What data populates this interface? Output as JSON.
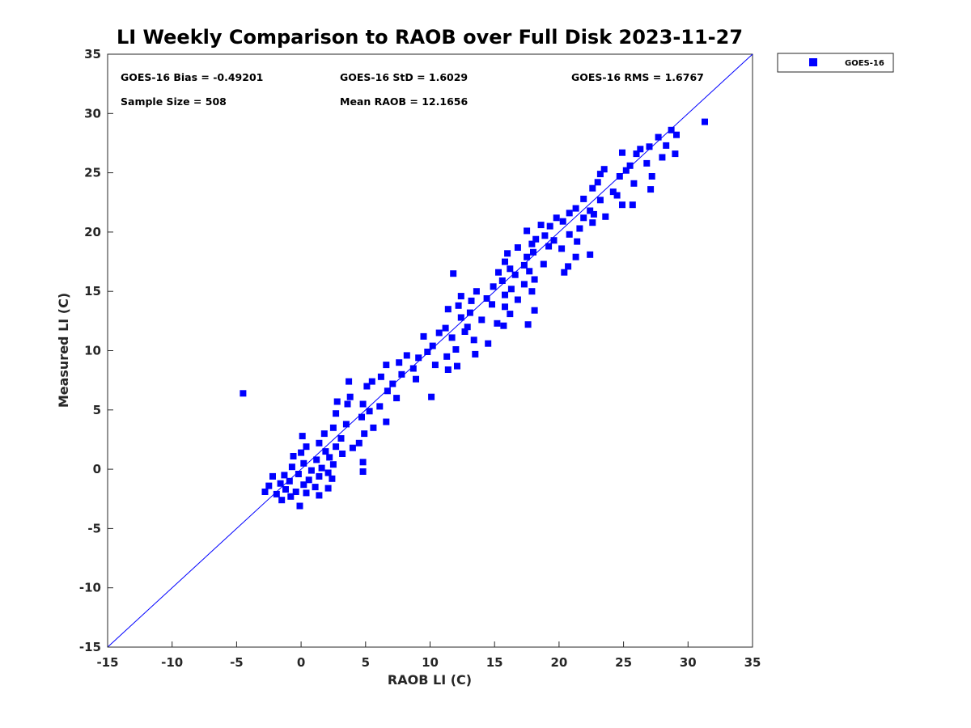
{
  "chart_data": {
    "type": "scatter",
    "title": "LI Weekly Comparison to RAOB over Full Disk 2023-11-27",
    "xlabel": "RAOB LI (C)",
    "ylabel": "Measured LI (C)",
    "xlim": [
      -15,
      35
    ],
    "ylim": [
      -15,
      35
    ],
    "xticks": [
      -15,
      -10,
      -5,
      0,
      5,
      10,
      15,
      20,
      25,
      30,
      35
    ],
    "yticks": [
      -15,
      -10,
      -5,
      0,
      5,
      10,
      15,
      20,
      25,
      30,
      35
    ],
    "grid": false,
    "reference_line": {
      "label": "1:1 line",
      "from": [
        -15,
        -15
      ],
      "to": [
        35,
        35
      ]
    },
    "legend": {
      "position": "outside-top-right",
      "entries": [
        "GOES-16"
      ]
    },
    "stats": {
      "bias": "GOES-16 Bias = -0.49201",
      "std": "GOES-16 StD = 1.6029",
      "rms": "GOES-16 RMS = 1.6767",
      "sample_size": "Sample Size = 508",
      "mean_raob": "Mean RAOB = 12.1656"
    },
    "series": [
      {
        "name": "GOES-16",
        "color": "#0000ff",
        "marker": "square",
        "points": [
          [
            -4.5,
            6.4
          ],
          [
            31.3,
            29.3
          ],
          [
            28.7,
            28.6
          ],
          [
            29.1,
            28.2
          ],
          [
            27.7,
            28.0
          ],
          [
            27.0,
            27.2
          ],
          [
            28.3,
            27.3
          ],
          [
            26.3,
            27.0
          ],
          [
            26.0,
            26.6
          ],
          [
            24.9,
            26.7
          ],
          [
            29.0,
            26.6
          ],
          [
            28.0,
            26.3
          ],
          [
            25.5,
            25.6
          ],
          [
            26.8,
            25.8
          ],
          [
            25.2,
            25.2
          ],
          [
            23.5,
            25.3
          ],
          [
            23.2,
            24.9
          ],
          [
            24.7,
            24.7
          ],
          [
            27.2,
            24.7
          ],
          [
            23.0,
            24.2
          ],
          [
            25.8,
            24.1
          ],
          [
            22.6,
            23.7
          ],
          [
            24.2,
            23.4
          ],
          [
            27.1,
            23.6
          ],
          [
            24.5,
            23.1
          ],
          [
            23.2,
            22.7
          ],
          [
            21.9,
            22.8
          ],
          [
            24.9,
            22.3
          ],
          [
            25.7,
            22.3
          ],
          [
            21.3,
            22.0
          ],
          [
            22.4,
            21.8
          ],
          [
            20.8,
            21.6
          ],
          [
            19.8,
            21.2
          ],
          [
            21.9,
            21.2
          ],
          [
            22.7,
            21.5
          ],
          [
            23.6,
            21.3
          ],
          [
            20.3,
            20.9
          ],
          [
            18.6,
            20.6
          ],
          [
            19.3,
            20.5
          ],
          [
            21.6,
            20.3
          ],
          [
            22.6,
            20.8
          ],
          [
            17.5,
            20.1
          ],
          [
            18.9,
            19.7
          ],
          [
            19.6,
            19.3
          ],
          [
            18.2,
            19.4
          ],
          [
            20.8,
            19.8
          ],
          [
            21.4,
            19.2
          ],
          [
            17.9,
            19.0
          ],
          [
            19.2,
            18.8
          ],
          [
            16.8,
            18.7
          ],
          [
            20.2,
            18.6
          ],
          [
            22.4,
            18.1
          ],
          [
            18.0,
            18.3
          ],
          [
            16.0,
            18.2
          ],
          [
            17.5,
            17.9
          ],
          [
            21.3,
            17.9
          ],
          [
            15.8,
            17.5
          ],
          [
            17.3,
            17.2
          ],
          [
            18.8,
            17.3
          ],
          [
            20.7,
            17.1
          ],
          [
            16.2,
            16.9
          ],
          [
            17.7,
            16.7
          ],
          [
            20.4,
            16.6
          ],
          [
            11.8,
            16.5
          ],
          [
            15.3,
            16.6
          ],
          [
            16.6,
            16.4
          ],
          [
            18.1,
            16.0
          ],
          [
            15.6,
            15.9
          ],
          [
            17.3,
            15.6
          ],
          [
            14.9,
            15.4
          ],
          [
            16.3,
            15.2
          ],
          [
            17.9,
            15.0
          ],
          [
            13.6,
            15.0
          ],
          [
            15.8,
            14.7
          ],
          [
            14.4,
            14.4
          ],
          [
            12.4,
            14.6
          ],
          [
            13.2,
            14.2
          ],
          [
            16.8,
            14.3
          ],
          [
            14.8,
            13.9
          ],
          [
            12.2,
            13.8
          ],
          [
            15.8,
            13.7
          ],
          [
            11.4,
            13.5
          ],
          [
            13.1,
            13.2
          ],
          [
            16.2,
            13.1
          ],
          [
            18.1,
            13.4
          ],
          [
            12.4,
            12.8
          ],
          [
            14.0,
            12.6
          ],
          [
            15.2,
            12.3
          ],
          [
            12.9,
            12.0
          ],
          [
            11.2,
            11.9
          ],
          [
            10.7,
            11.5
          ],
          [
            12.7,
            11.6
          ],
          [
            15.7,
            12.1
          ],
          [
            17.6,
            12.2
          ],
          [
            9.5,
            11.2
          ],
          [
            11.7,
            11.1
          ],
          [
            13.4,
            10.9
          ],
          [
            14.5,
            10.6
          ],
          [
            10.2,
            10.4
          ],
          [
            12.0,
            10.1
          ],
          [
            9.8,
            9.9
          ],
          [
            13.5,
            9.7
          ],
          [
            11.3,
            9.5
          ],
          [
            8.2,
            9.6
          ],
          [
            9.1,
            9.4
          ],
          [
            7.6,
            9.0
          ],
          [
            10.4,
            8.8
          ],
          [
            12.1,
            8.7
          ],
          [
            6.6,
            8.8
          ],
          [
            8.7,
            8.5
          ],
          [
            11.4,
            8.4
          ],
          [
            7.8,
            8.0
          ],
          [
            6.2,
            7.8
          ],
          [
            8.9,
            7.6
          ],
          [
            5.5,
            7.4
          ],
          [
            7.1,
            7.2
          ],
          [
            5.1,
            7.0
          ],
          [
            6.7,
            6.6
          ],
          [
            3.7,
            7.4
          ],
          [
            10.1,
            6.1
          ],
          [
            3.8,
            6.1
          ],
          [
            7.4,
            6.0
          ],
          [
            2.8,
            5.7
          ],
          [
            4.8,
            5.5
          ],
          [
            6.1,
            5.3
          ],
          [
            3.6,
            5.5
          ],
          [
            5.3,
            4.9
          ],
          [
            2.7,
            4.7
          ],
          [
            4.7,
            4.4
          ],
          [
            6.6,
            4.0
          ],
          [
            3.5,
            3.8
          ],
          [
            5.6,
            3.5
          ],
          [
            2.5,
            3.5
          ],
          [
            4.9,
            3.0
          ],
          [
            1.8,
            3.0
          ],
          [
            3.1,
            2.6
          ],
          [
            0.1,
            2.8
          ],
          [
            4.5,
            2.2
          ],
          [
            1.4,
            2.2
          ],
          [
            2.7,
            1.9
          ],
          [
            0.4,
            1.9
          ],
          [
            4.0,
            1.8
          ],
          [
            1.9,
            1.5
          ],
          [
            0.0,
            1.4
          ],
          [
            3.2,
            1.3
          ],
          [
            2.2,
            1.0
          ],
          [
            -0.6,
            1.1
          ],
          [
            1.2,
            0.8
          ],
          [
            4.8,
            0.6
          ],
          [
            2.5,
            0.4
          ],
          [
            0.2,
            0.5
          ],
          [
            1.6,
            0.1
          ],
          [
            -0.7,
            0.2
          ],
          [
            0.8,
            -0.1
          ],
          [
            2.1,
            -0.3
          ],
          [
            -0.2,
            -0.4
          ],
          [
            4.8,
            -0.2
          ],
          [
            1.4,
            -0.6
          ],
          [
            -1.3,
            -0.5
          ],
          [
            -2.2,
            -0.6
          ],
          [
            0.6,
            -0.9
          ],
          [
            2.4,
            -0.8
          ],
          [
            -0.9,
            -1.0
          ],
          [
            -1.6,
            -1.2
          ],
          [
            0.2,
            -1.3
          ],
          [
            -2.5,
            -1.4
          ],
          [
            1.1,
            -1.5
          ],
          [
            2.1,
            -1.6
          ],
          [
            -1.2,
            -1.7
          ],
          [
            -0.4,
            -1.9
          ],
          [
            -2.8,
            -1.9
          ],
          [
            0.4,
            -2.0
          ],
          [
            -1.9,
            -2.1
          ],
          [
            1.4,
            -2.2
          ],
          [
            -0.8,
            -2.3
          ],
          [
            -1.5,
            -2.6
          ],
          [
            -0.1,
            -3.1
          ]
        ]
      }
    ]
  }
}
